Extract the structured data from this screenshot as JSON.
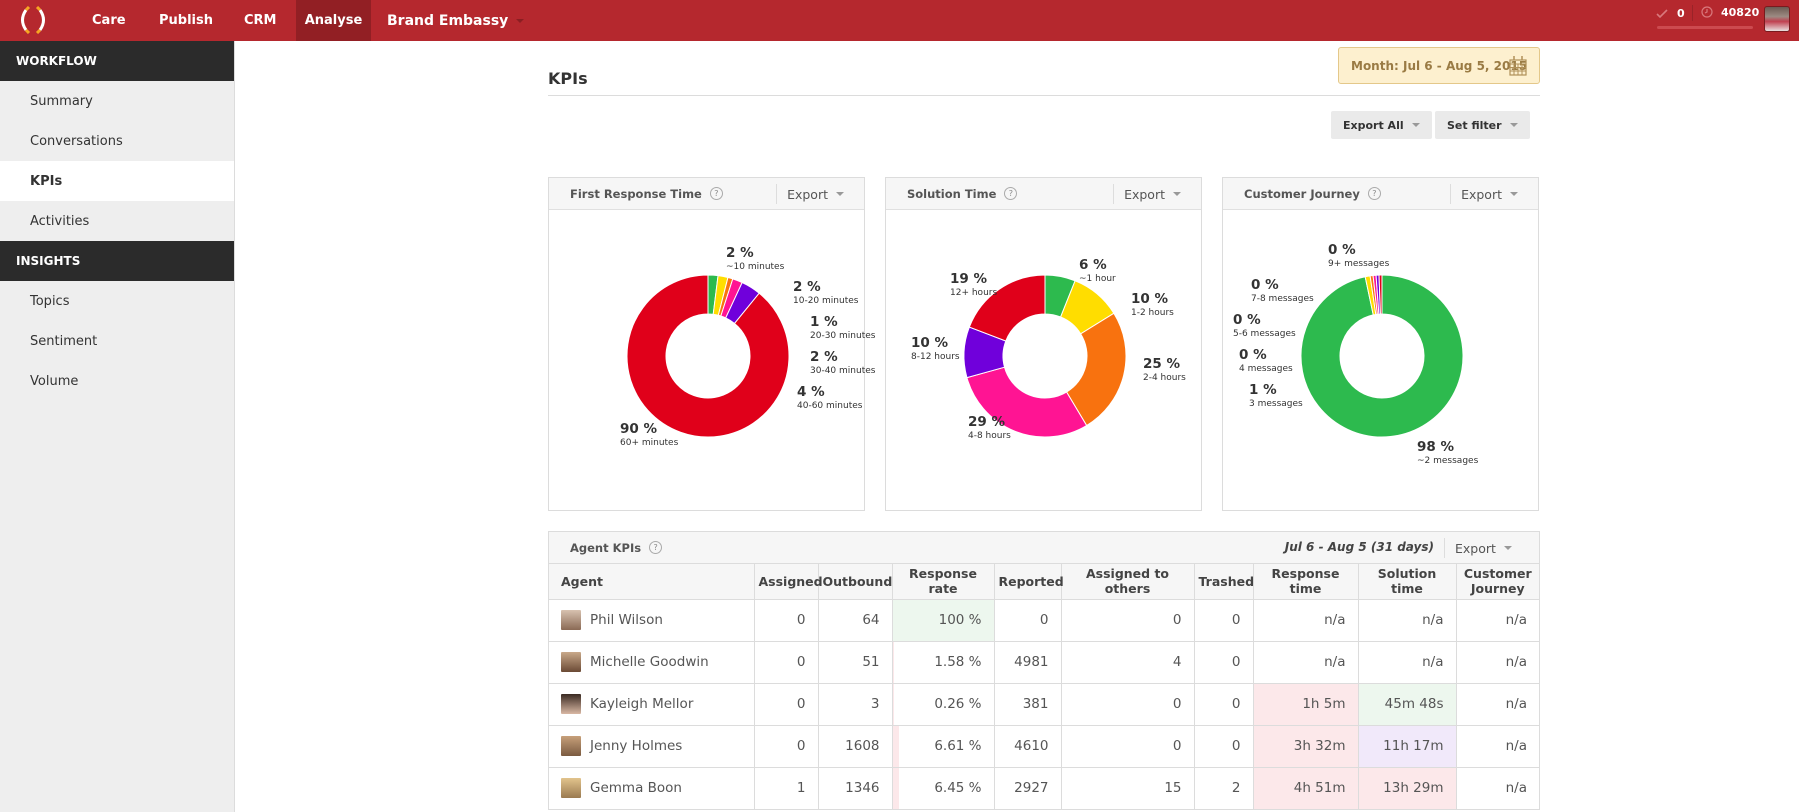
{
  "topbar": {
    "nav": [
      {
        "label": "Care",
        "active": false
      },
      {
        "label": "Publish",
        "active": false
      },
      {
        "label": "CRM",
        "active": false
      },
      {
        "label": "Analyse",
        "active": true
      }
    ],
    "brand": "Brand Embassy",
    "check_count": "0",
    "clock_count": "40820",
    "bar_color": "#b5282e"
  },
  "sidebar": {
    "sections": [
      {
        "title": "WORKFLOW",
        "items": [
          {
            "label": "Summary",
            "active": false
          },
          {
            "label": "Conversations",
            "active": false
          },
          {
            "label": "KPIs",
            "active": true
          },
          {
            "label": "Activities",
            "active": false
          }
        ]
      },
      {
        "title": "INSIGHTS",
        "items": [
          {
            "label": "Topics",
            "active": false
          },
          {
            "label": "Sentiment",
            "active": false
          },
          {
            "label": "Volume",
            "active": false
          }
        ]
      }
    ]
  },
  "main": {
    "title": "KPIs",
    "date_range": "Month: Jul 6 - Aug 5, 2015",
    "export_all": "Export All",
    "set_filter": "Set filter"
  },
  "chart_data": [
    {
      "type": "pie",
      "title": "First Response Time",
      "export_label": "Export",
      "help": "?",
      "categories": [
        "~10 minutes",
        "10-20 minutes",
        "20-30 minutes",
        "30-40 minutes",
        "40-60 minutes",
        "60+ minutes"
      ],
      "values": [
        2,
        2,
        1,
        2,
        4,
        90
      ],
      "labels": [
        "2 %",
        "2 %",
        "1 %",
        "2 %",
        "4 %",
        "90 %"
      ],
      "colors": [
        "#2dba4e",
        "#ffdd00",
        "#f8720f",
        "#ff1493",
        "#7000db",
        "#e0001a"
      ],
      "legend": "outside-labels"
    },
    {
      "type": "pie",
      "title": "Solution Time",
      "export_label": "Export",
      "help": "?",
      "categories": [
        "~1 hour",
        "1-2 hours",
        "2-4 hours",
        "4-8 hours",
        "8-12 hours",
        "12+ hours"
      ],
      "values": [
        6,
        10,
        25,
        29,
        10,
        19
      ],
      "labels": [
        "6 %",
        "10 %",
        "25 %",
        "29 %",
        "10 %",
        "19 %"
      ],
      "colors": [
        "#2dba4e",
        "#ffdd00",
        "#f8720f",
        "#ff1493",
        "#7000db",
        "#e0001a"
      ],
      "legend": "outside-labels"
    },
    {
      "type": "pie",
      "title": "Customer Journey",
      "export_label": "Export",
      "help": "?",
      "categories": [
        "~2 messages",
        "3 messages",
        "4 messages",
        "5-6 messages",
        "7-8 messages",
        "9+ messages"
      ],
      "values": [
        98,
        1,
        0,
        0,
        0,
        0
      ],
      "labels": [
        "98 %",
        "1 %",
        "0 %",
        "0 %",
        "0 %",
        "0 %"
      ],
      "colors": [
        "#2dba4e",
        "#ffdd00",
        "#f8720f",
        "#ff1493",
        "#7000db",
        "#e0001a"
      ],
      "legend": "outside-labels"
    }
  ],
  "agent_kpis": {
    "title": "Agent KPIs",
    "help": "?",
    "range": "Jul 6 - Aug 5 (31 days)",
    "export_label": "Export",
    "columns": [
      "Agent",
      "Assigned",
      "Outbound",
      "Response rate",
      "Reported",
      "Assigned to others",
      "Trashed",
      "Response time",
      "Solution time",
      "Customer Journey"
    ],
    "rows": [
      {
        "agent": "Phil Wilson",
        "assigned": "0",
        "outbound": "64",
        "response_rate": "100 %",
        "response_rate_value": 100,
        "reported": "0",
        "assigned_to_others": "0",
        "trashed": "0",
        "response_time": "n/a",
        "solution_time": "n/a",
        "customer_journey": "n/a",
        "rt_bg": "",
        "st_bg": ""
      },
      {
        "agent": "Michelle Goodwin",
        "assigned": "0",
        "outbound": "51",
        "response_rate": "1.58 %",
        "response_rate_value": 1.58,
        "reported": "4981",
        "assigned_to_others": "4",
        "trashed": "0",
        "response_time": "n/a",
        "solution_time": "n/a",
        "customer_journey": "n/a",
        "rt_bg": "",
        "st_bg": ""
      },
      {
        "agent": "Kayleigh Mellor",
        "assigned": "0",
        "outbound": "3",
        "response_rate": "0.26 %",
        "response_rate_value": 0.26,
        "reported": "381",
        "assigned_to_others": "0",
        "trashed": "0",
        "response_time": "1h 5m",
        "solution_time": "45m 48s",
        "customer_journey": "n/a",
        "rt_bg": "red",
        "st_bg": "green"
      },
      {
        "agent": "Jenny Holmes",
        "assigned": "0",
        "outbound": "1608",
        "response_rate": "6.61 %",
        "response_rate_value": 6.61,
        "reported": "4610",
        "assigned_to_others": "0",
        "trashed": "0",
        "response_time": "3h 32m",
        "solution_time": "11h 17m",
        "customer_journey": "n/a",
        "rt_bg": "red",
        "st_bg": "purple"
      },
      {
        "agent": "Gemma Boon",
        "assigned": "1",
        "outbound": "1346",
        "response_rate": "6.45 %",
        "response_rate_value": 6.45,
        "reported": "2927",
        "assigned_to_others": "15",
        "trashed": "2",
        "response_time": "4h 51m",
        "solution_time": "13h 29m",
        "customer_journey": "n/a",
        "rt_bg": "red",
        "st_bg": "red"
      }
    ]
  }
}
